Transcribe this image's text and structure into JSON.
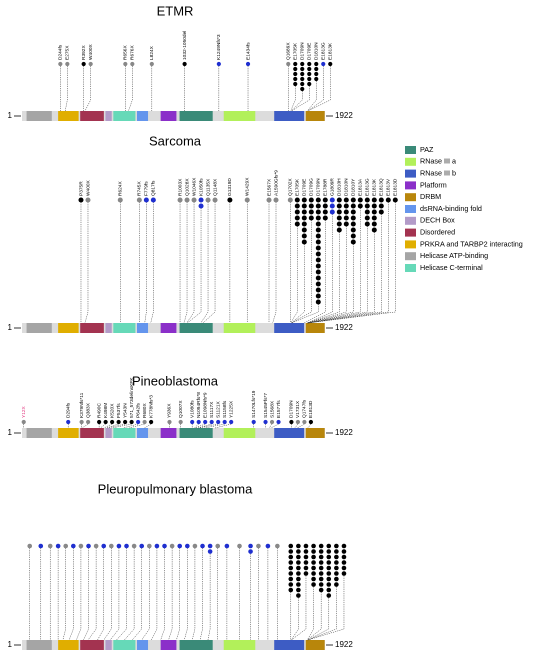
{
  "domains": [
    {
      "name": "PAZ",
      "color": "#3a8a78",
      "start": 1000,
      "end": 1210
    },
    {
      "name": "RNase III a",
      "color": "#b2f05a",
      "start": 1280,
      "end": 1480
    },
    {
      "name": "RNase III b",
      "color": "#3d5cc4",
      "start": 1600,
      "end": 1790
    },
    {
      "name": "Platform",
      "color": "#8b2fc9",
      "start": 880,
      "end": 980
    },
    {
      "name": "DRBM",
      "color": "#b8860b",
      "start": 1800,
      "end": 1920
    },
    {
      "name": "dsRNA-binding fold",
      "color": "#6495ed",
      "start": 730,
      "end": 800
    },
    {
      "name": "DECH Box",
      "color": "#b39bc8",
      "start": 530,
      "end": 570
    },
    {
      "name": "Disordered",
      "color": "#a33350",
      "start": 370,
      "end": 520
    },
    {
      "name": "PRKRA and TARBP2 interacting",
      "color": "#e0ae00",
      "start": 230,
      "end": 360
    },
    {
      "name": "Helicase ATP-binding",
      "color": "#a5a5a5",
      "start": 30,
      "end": 190
    },
    {
      "name": "Helicase C-terminal",
      "color": "#66d9b8",
      "start": 580,
      "end": 720
    }
  ],
  "chart_data": [
    {
      "type": "lollipop",
      "title": "ETMR",
      "xlim": [
        1,
        1922
      ],
      "mutations": [
        {
          "label": "D244fs",
          "position": 244,
          "count": 1,
          "color": "#888888"
        },
        {
          "label": "E275X",
          "position": 275,
          "count": 1,
          "color": "#888888"
        },
        {
          "label": "R392X",
          "position": 392,
          "count": 1,
          "color": "#000000"
        },
        {
          "label": "W400X",
          "position": 400,
          "count": 1,
          "color": "#888888"
        },
        {
          "label": "R656X",
          "position": 656,
          "count": 1,
          "color": "#888888"
        },
        {
          "label": "R676X",
          "position": 676,
          "count": 1,
          "color": "#888888"
        },
        {
          "label": "L824X",
          "position": 824,
          "count": 1,
          "color": "#888888"
        },
        {
          "label": "1032-1050del",
          "position": 1032,
          "count": 1,
          "color": "#000000"
        },
        {
          "label": "K1249Nfs*3",
          "position": 1249,
          "count": 1,
          "color": "#1f2fd0"
        },
        {
          "label": "E1434fs",
          "position": 1434,
          "count": 1,
          "color": "#1f2fd0"
        },
        {
          "label": "Q1689X",
          "position": 1689,
          "count": 1,
          "color": "#888888"
        },
        {
          "label": "E1705K",
          "position": 1705,
          "count": 5,
          "color": "#000000"
        },
        {
          "label": "D1709N",
          "position": 1709,
          "count": 6,
          "color": "#000000"
        },
        {
          "label": "D1709E",
          "position": 1709,
          "count": 5,
          "color": "#000000"
        },
        {
          "label": "D1810N",
          "position": 1810,
          "count": 4,
          "color": "#000000"
        },
        {
          "label": "E1813G",
          "position": 1813,
          "count": 1,
          "color": "#1f2fd0"
        },
        {
          "label": "E1813K",
          "position": 1813,
          "count": 1,
          "color": "#000000"
        }
      ]
    },
    {
      "type": "lollipop",
      "title": "Sarcoma",
      "xlim": [
        1,
        1922
      ],
      "mutations": [
        {
          "label": "P375R",
          "position": 375,
          "count": 1,
          "color": "#000000"
        },
        {
          "label": "W400X",
          "position": 400,
          "count": 1,
          "color": "#888888"
        },
        {
          "label": "R624X",
          "position": 624,
          "count": 1,
          "color": "#888888"
        },
        {
          "label": "R745X",
          "position": 745,
          "count": 1,
          "color": "#888888"
        },
        {
          "label": "F779fs",
          "position": 779,
          "count": 1,
          "color": "#1f2fd0"
        },
        {
          "label": "Q817fs",
          "position": 817,
          "count": 1,
          "color": "#1f2fd0"
        },
        {
          "label": "R1003X",
          "position": 1003,
          "count": 1,
          "color": "#888888"
        },
        {
          "label": "Q1028X",
          "position": 1028,
          "count": 1,
          "color": "#888888"
        },
        {
          "label": "W1046X",
          "position": 1046,
          "count": 1,
          "color": "#888888"
        },
        {
          "label": "K1050fs",
          "position": 1050,
          "count": 2,
          "color": "#1f2fd0"
        },
        {
          "label": "Q1135X",
          "position": 1135,
          "count": 1,
          "color": "#888888"
        },
        {
          "label": "Q1148X",
          "position": 1148,
          "count": 1,
          "color": "#888888"
        },
        {
          "label": "G1319D",
          "position": 1319,
          "count": 1,
          "color": "#000000"
        },
        {
          "label": "W1429X",
          "position": 1429,
          "count": 1,
          "color": "#888888"
        },
        {
          "label": "E1567X",
          "position": 1567,
          "count": 1,
          "color": "#888888"
        },
        {
          "label": "A1590Gfs*9",
          "position": 1590,
          "count": 1,
          "color": "#888888"
        },
        {
          "label": "Q1702X",
          "position": 1702,
          "count": 1,
          "color": "#888888"
        },
        {
          "label": "E1705K",
          "position": 1705,
          "count": 5,
          "color": "#000000"
        },
        {
          "label": "D1709E",
          "position": 1709,
          "count": 8,
          "color": "#000000"
        },
        {
          "label": "D1709G",
          "position": 1709,
          "count": 4,
          "color": "#000000"
        },
        {
          "label": "D1709N",
          "position": 1709,
          "count": 18,
          "color": "#000000"
        },
        {
          "label": "E1788R",
          "position": 1788,
          "count": 4,
          "color": "#000000"
        },
        {
          "label": "G1809R",
          "position": 1809,
          "count": 3,
          "color": "#1f2fd0"
        },
        {
          "label": "D1810H",
          "position": 1810,
          "count": 6,
          "color": "#000000"
        },
        {
          "label": "D1810N",
          "position": 1810,
          "count": 5,
          "color": "#000000"
        },
        {
          "label": "D1810Y",
          "position": 1810,
          "count": 8,
          "color": "#000000"
        },
        {
          "label": "E1813A",
          "position": 1813,
          "count": 2,
          "color": "#000000"
        },
        {
          "label": "E1813G",
          "position": 1813,
          "count": 5,
          "color": "#000000"
        },
        {
          "label": "E1813K",
          "position": 1813,
          "count": 6,
          "color": "#000000"
        },
        {
          "label": "E1813Q",
          "position": 1813,
          "count": 3,
          "color": "#000000"
        },
        {
          "label": "E1813V",
          "position": 1813,
          "count": 1,
          "color": "#000000"
        },
        {
          "label": "E1813D",
          "position": 1813,
          "count": 1,
          "color": "#000000"
        }
      ]
    },
    {
      "type": "lollipop",
      "title": "Pineoblastoma",
      "xlim": [
        1,
        1922
      ],
      "mutations": [
        {
          "label": "Y12X",
          "position": 12,
          "count": 1,
          "color": "#888888",
          "label_color": "#e0307a"
        },
        {
          "label": "D294fs",
          "position": 294,
          "count": 1,
          "color": "#1f2fd0"
        },
        {
          "label": "K379Nfs*11",
          "position": 379,
          "count": 1,
          "color": "#888888"
        },
        {
          "label": "Q383X",
          "position": 383,
          "count": 1,
          "color": "#888888"
        },
        {
          "label": "R490C",
          "position": 490,
          "count": 1,
          "color": "#000000"
        },
        {
          "label": "K498M",
          "position": 498,
          "count": 1,
          "color": "#000000"
        },
        {
          "label": "K520X",
          "position": 520,
          "count": 1,
          "color": "#000000"
        },
        {
          "label": "F537fs",
          "position": 537,
          "count": 1,
          "color": "#000000"
        },
        {
          "label": "Y543N",
          "position": 543,
          "count": 1,
          "color": "#000000"
        },
        {
          "label": "571_573delinsKFK",
          "position": 571,
          "count": 1,
          "color": "#000000"
        },
        {
          "label": "P642fs",
          "position": 642,
          "count": 1,
          "color": "#1f2fd0"
        },
        {
          "label": "R680X",
          "position": 680,
          "count": 1,
          "color": "#888888"
        },
        {
          "label": "K778Nfs*3",
          "position": 778,
          "count": 1,
          "color": "#000000"
        },
        {
          "label": "Y936X",
          "position": 936,
          "count": 1,
          "color": "#888888"
        },
        {
          "label": "Q1007X",
          "position": 1007,
          "count": 1,
          "color": "#888888"
        },
        {
          "label": "V1080fs",
          "position": 1080,
          "count": 1,
          "color": "#1f2fd0"
        },
        {
          "label": "N1094Rfs*8",
          "position": 1094,
          "count": 1,
          "color": "#1f2fd0"
        },
        {
          "label": "E1098Nfs*9",
          "position": 1098,
          "count": 1,
          "color": "#1f2fd0"
        },
        {
          "label": "S1117X",
          "position": 1117,
          "count": 1,
          "color": "#1f2fd0"
        },
        {
          "label": "S1121X",
          "position": 1121,
          "count": 1,
          "color": "#1f2fd0"
        },
        {
          "label": "S1158fs",
          "position": 1158,
          "count": 1,
          "color": "#1f2fd0"
        },
        {
          "label": "Y1225X",
          "position": 1225,
          "count": 1,
          "color": "#1f2fd0"
        },
        {
          "label": "S1470Lfs*19",
          "position": 1470,
          "count": 1,
          "color": "#1f2fd0"
        },
        {
          "label": "S1545Ffs*7",
          "position": 1545,
          "count": 1,
          "color": "#1f2fd0"
        },
        {
          "label": "S1568X",
          "position": 1568,
          "count": 1,
          "color": "#888888"
        },
        {
          "label": "E1577fs",
          "position": 1577,
          "count": 1,
          "color": "#1f2fd0"
        },
        {
          "label": "D1709N",
          "position": 1709,
          "count": 1,
          "color": "#000000"
        },
        {
          "label": "V1731X",
          "position": 1731,
          "count": 1,
          "color": "#888888"
        },
        {
          "label": "Q1747fs",
          "position": 1747,
          "count": 1,
          "color": "#888888"
        },
        {
          "label": "E1813D",
          "position": 1813,
          "count": 1,
          "color": "#000000"
        }
      ]
    },
    {
      "type": "lollipop",
      "title": "Pleuropulmonary blastoma",
      "xlim": [
        1,
        1922
      ],
      "mutations": [
        {
          "position": 50,
          "count": 1,
          "color": "#888888"
        },
        {
          "position": 120,
          "count": 1,
          "color": "#1f2fd0"
        },
        {
          "position": 180,
          "count": 1,
          "color": "#888888"
        },
        {
          "position": 230,
          "count": 1,
          "color": "#1f2fd0"
        },
        {
          "position": 260,
          "count": 1,
          "color": "#888888"
        },
        {
          "position": 300,
          "count": 1,
          "color": "#1f2fd0"
        },
        {
          "position": 345,
          "count": 1,
          "color": "#888888"
        },
        {
          "position": 390,
          "count": 1,
          "color": "#1f2fd0"
        },
        {
          "position": 420,
          "count": 1,
          "color": "#888888"
        },
        {
          "position": 480,
          "count": 1,
          "color": "#1f2fd0"
        },
        {
          "position": 520,
          "count": 1,
          "color": "#888888"
        },
        {
          "position": 560,
          "count": 1,
          "color": "#1f2fd0"
        },
        {
          "position": 600,
          "count": 1,
          "color": "#1f2fd0"
        },
        {
          "position": 650,
          "count": 1,
          "color": "#888888"
        },
        {
          "position": 700,
          "count": 1,
          "color": "#1f2fd0"
        },
        {
          "position": 760,
          "count": 1,
          "color": "#888888"
        },
        {
          "position": 820,
          "count": 1,
          "color": "#1f2fd0"
        },
        {
          "position": 880,
          "count": 1,
          "color": "#1f2fd0"
        },
        {
          "position": 930,
          "count": 1,
          "color": "#888888"
        },
        {
          "position": 980,
          "count": 1,
          "color": "#1f2fd0"
        },
        {
          "position": 1030,
          "count": 1,
          "color": "#1f2fd0"
        },
        {
          "position": 1080,
          "count": 1,
          "color": "#888888"
        },
        {
          "position": 1130,
          "count": 1,
          "color": "#1f2fd0"
        },
        {
          "position": 1180,
          "count": 2,
          "color": "#1f2fd0"
        },
        {
          "position": 1240,
          "count": 1,
          "color": "#888888"
        },
        {
          "position": 1300,
          "count": 1,
          "color": "#1f2fd0"
        },
        {
          "position": 1380,
          "count": 1,
          "color": "#888888"
        },
        {
          "position": 1450,
          "count": 2,
          "color": "#1f2fd0"
        },
        {
          "position": 1500,
          "count": 1,
          "color": "#888888"
        },
        {
          "position": 1560,
          "count": 1,
          "color": "#1f2fd0"
        },
        {
          "position": 1620,
          "count": 1,
          "color": "#888888"
        },
        {
          "position": 1705,
          "count": 9,
          "color": "#000000"
        },
        {
          "position": 1709,
          "count": 10,
          "color": "#000000"
        },
        {
          "position": 1709,
          "count": 6,
          "color": "#000000"
        },
        {
          "position": 1810,
          "count": 8,
          "color": "#000000"
        },
        {
          "position": 1810,
          "count": 9,
          "color": "#000000"
        },
        {
          "position": 1813,
          "count": 10,
          "color": "#000000"
        },
        {
          "position": 1813,
          "count": 8,
          "color": "#000000"
        },
        {
          "position": 1813,
          "count": 6,
          "color": "#000000"
        }
      ]
    }
  ]
}
